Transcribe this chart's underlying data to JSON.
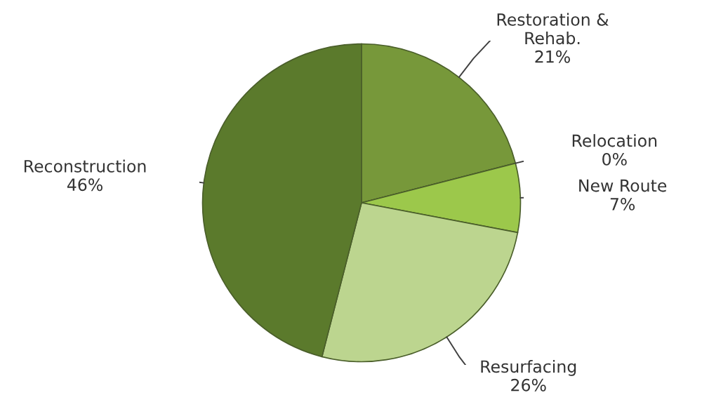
{
  "chart_data": {
    "type": "pie",
    "categories": [
      "Restoration &\nRehab.",
      "Relocation",
      "New Route",
      "Resurfacing",
      "Reconstruction"
    ],
    "values": [
      21,
      0,
      7,
      26,
      46
    ],
    "value_labels": [
      "21%",
      "0%",
      "7%",
      "26%",
      "46%"
    ],
    "colors": [
      "#77983a",
      "#8db443",
      "#9cc84b",
      "#bcd58f",
      "#5b7a2c"
    ],
    "legend": false
  }
}
